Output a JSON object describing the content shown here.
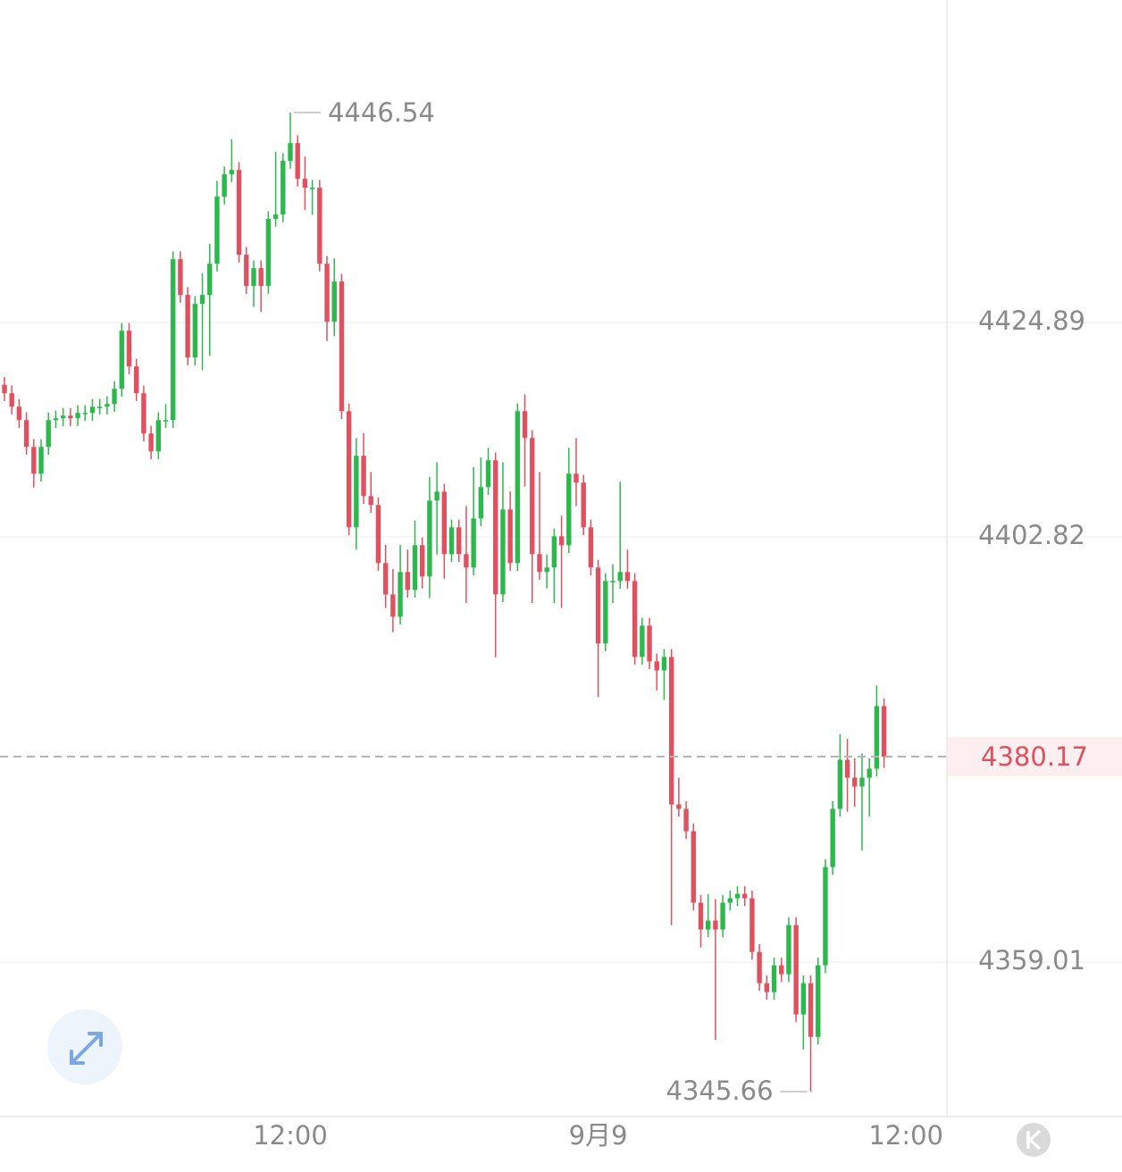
{
  "chart_data": {
    "type": "candlestick",
    "up_color": "#2db84d",
    "down_color": "#e0515f",
    "xlim": [
      -0.61,
      128.58
    ],
    "xticks": [
      {
        "value": 39,
        "label": "12:00"
      },
      {
        "value": 81,
        "label": "9月9"
      },
      {
        "value": 123,
        "label": "12:00"
      }
    ],
    "ylim": [
      4343.08,
      4458.14
    ],
    "yticks": [
      4359.01,
      4402.82,
      4424.89
    ],
    "grid": true,
    "last_price": 4380.17,
    "high_marker": 4446.54,
    "low_marker": 4345.66,
    "open": [
      4418.5,
      4417.62,
      4416.23,
      4414.85,
      4412.09,
      4409.33,
      4412.09,
      4414.85,
      4415.04,
      4415.31,
      4415.04,
      4415.59,
      4415.59,
      4416.23,
      4416.23,
      4416.51,
      4418.08,
      4424.06,
      4420.38,
      4417.62,
      4413.47,
      4411.63,
      4414.85,
      4414.85,
      4431.43,
      4427.75,
      4421.3,
      4426.83,
      4427.75,
      4430.97,
      4437.88,
      4440.18,
      4440.64,
      4431.89,
      4428.67,
      4430.51,
      4428.67,
      4435.58,
      4436.04,
      4441.56,
      4443.4,
      4439.72,
      4438.8,
      4438.8,
      4430.97,
      4424.98,
      4429.13,
      4415.77,
      4403.8,
      4411.17,
      4407.02,
      4406.1,
      4400.12,
      4396.89,
      4394.59,
      4399.2,
      4397.35,
      4401.96,
      4398.74,
      4406.56,
      4407.48,
      4401.04,
      4403.8,
      4401.04,
      4399.66,
      4404.72,
      4407.95,
      4410.71,
      4396.89,
      4405.64,
      4400.12,
      4415.77,
      4413.01,
      4401.04,
      4399.2,
      4399.66,
      4402.88,
      4401.96,
      4409.33,
      4408.41,
      4403.8,
      4399.66,
      4391.83,
      4398.27,
      4398.27,
      4399.2,
      4398.27,
      4390.45,
      4393.67,
      4389.99,
      4389.06,
      4390.45,
      4375.25,
      4374.79,
      4372.49,
      4365.12,
      4362.36,
      4363.28,
      4362.36,
      4365.12,
      4365.58,
      4366.04,
      4365.58,
      4360.05,
      4356.83,
      4355.91,
      4358.67,
      4357.75,
      4362.82,
      4353.61,
      4356.83,
      4351.3,
      4358.67,
      4368.8,
      4374.79,
      4379.85,
      4378.01,
      4377.09,
      4378.01,
      4378.93,
      4385.38
    ],
    "high": [
      4419.3,
      4418.42,
      4417.03,
      4415.65,
      4412.89,
      4412.89,
      4415.65,
      4415.84,
      4416.11,
      4416.11,
      4416.39,
      4416.39,
      4417.03,
      4417.03,
      4417.31,
      4418.88,
      4424.86,
      4424.86,
      4421.18,
      4418.42,
      4414.27,
      4415.65,
      4416.5,
      4432.23,
      4432.23,
      4428.55,
      4427.63,
      4430.0,
      4433.0,
      4439.5,
      4440.98,
      4443.8,
      4441.44,
      4432.69,
      4431.31,
      4431.31,
      4436.38,
      4442.5,
      4442.36,
      4446.54,
      4444.2,
      4442.0,
      4439.6,
      4439.6,
      4431.77,
      4431.5,
      4429.93,
      4416.57,
      4413.0,
      4413.5,
      4409.5,
      4406.9,
      4402.0,
      4399.5,
      4402.0,
      4401.5,
      4404.5,
      4402.76,
      4409.0,
      4410.5,
      4408.28,
      4404.6,
      4404.6,
      4406.0,
      4410.0,
      4411.0,
      4412.0,
      4411.51,
      4410.5,
      4407.5,
      4416.57,
      4417.5,
      4413.81,
      4409.5,
      4401.0,
      4403.68,
      4405.0,
      4412.0,
      4413.0,
      4409.21,
      4404.6,
      4400.46,
      4399.07,
      4400.0,
      4408.5,
      4401.5,
      4399.07,
      4394.47,
      4394.47,
      4390.79,
      4391.25,
      4391.25,
      4378.0,
      4375.59,
      4373.29,
      4365.92,
      4366.0,
      4365.5,
      4365.92,
      4366.38,
      4366.84,
      4366.84,
      4366.38,
      4360.85,
      4357.63,
      4359.47,
      4359.47,
      4363.62,
      4363.62,
      4357.63,
      4357.63,
      4359.47,
      4369.6,
      4375.59,
      4382.5,
      4382.0,
      4380.0,
      4380.5,
      4380.0,
      4387.5,
      4386.18
    ],
    "low": [
      4416.82,
      4415.43,
      4414.05,
      4411.29,
      4407.9,
      4408.53,
      4411.29,
      4414.05,
      4414.24,
      4414.24,
      4414.24,
      4414.79,
      4414.79,
      4415.43,
      4415.43,
      4415.71,
      4417.28,
      4419.58,
      4416.82,
      4412.67,
      4410.83,
      4410.83,
      4414.05,
      4414.05,
      4426.95,
      4420.5,
      4420.5,
      4420.0,
      4421.5,
      4430.17,
      4437.08,
      4439.38,
      4431.09,
      4427.87,
      4426.5,
      4426.0,
      4427.87,
      4434.78,
      4435.24,
      4440.76,
      4438.92,
      4436.5,
      4436.0,
      4430.17,
      4423.0,
      4423.5,
      4414.97,
      4403.0,
      4401.5,
      4406.22,
      4405.3,
      4399.32,
      4395.5,
      4393.0,
      4393.79,
      4396.55,
      4396.55,
      4397.5,
      4396.5,
      4401.0,
      4398.5,
      4400.24,
      4400.24,
      4396.0,
      4398.86,
      4403.92,
      4407.15,
      4390.4,
      4396.09,
      4399.32,
      4399.32,
      4408.0,
      4396.0,
      4398.4,
      4397.5,
      4396.0,
      4395.5,
      4401.16,
      4406.0,
      4403.0,
      4398.86,
      4386.3,
      4391.03,
      4396.0,
      4397.47,
      4397.47,
      4389.65,
      4389.65,
      4389.19,
      4387.0,
      4386.0,
      4362.8,
      4373.99,
      4371.69,
      4364.32,
      4360.5,
      4361.56,
      4351.0,
      4361.56,
      4364.32,
      4364.78,
      4364.78,
      4359.25,
      4356.03,
      4355.11,
      4355.11,
      4356.95,
      4356.95,
      4352.81,
      4350.0,
      4345.66,
      4350.5,
      4357.87,
      4368.0,
      4373.99,
      4374.5,
      4375.0,
      4370.5,
      4374.0,
      4378.13,
      4379.0
    ],
    "close": [
      4417.62,
      4416.23,
      4414.85,
      4412.09,
      4409.33,
      4412.09,
      4414.85,
      4415.04,
      4415.31,
      4415.04,
      4415.59,
      4415.59,
      4416.23,
      4416.23,
      4416.51,
      4418.08,
      4424.06,
      4420.38,
      4417.62,
      4413.47,
      4411.63,
      4414.85,
      4414.85,
      4431.43,
      4427.75,
      4421.3,
      4426.83,
      4427.75,
      4430.97,
      4437.88,
      4440.18,
      4440.64,
      4431.89,
      4428.67,
      4430.51,
      4428.67,
      4435.58,
      4436.04,
      4441.56,
      4443.4,
      4439.72,
      4438.8,
      4438.8,
      4430.97,
      4424.98,
      4429.13,
      4415.77,
      4403.8,
      4411.17,
      4407.02,
      4406.1,
      4400.12,
      4396.89,
      4394.59,
      4399.2,
      4397.35,
      4401.96,
      4398.74,
      4406.56,
      4407.48,
      4401.04,
      4403.8,
      4401.04,
      4399.66,
      4404.72,
      4407.95,
      4410.71,
      4396.89,
      4405.64,
      4400.12,
      4415.77,
      4413.01,
      4401.04,
      4399.2,
      4399.66,
      4402.88,
      4401.96,
      4409.33,
      4408.41,
      4403.8,
      4399.66,
      4391.83,
      4398.27,
      4398.27,
      4399.2,
      4398.27,
      4390.45,
      4393.67,
      4389.99,
      4389.06,
      4390.45,
      4375.25,
      4374.79,
      4372.49,
      4365.12,
      4362.36,
      4363.28,
      4362.36,
      4365.12,
      4365.58,
      4366.04,
      4365.58,
      4360.05,
      4356.83,
      4355.91,
      4358.67,
      4357.75,
      4362.82,
      4353.61,
      4356.83,
      4351.3,
      4358.67,
      4368.8,
      4374.79,
      4379.85,
      4378.01,
      4377.09,
      4378.01,
      4378.93,
      4385.38,
      4380.17
    ]
  }
}
